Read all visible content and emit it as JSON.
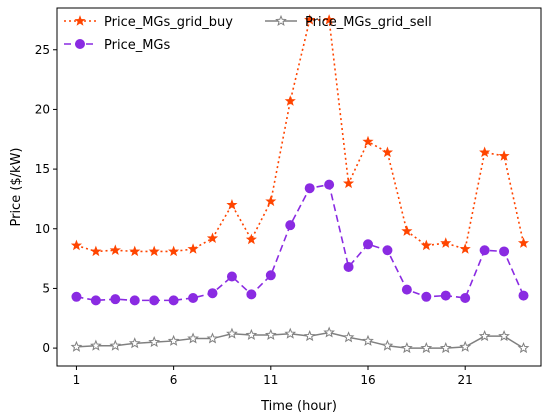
{
  "chart_data": {
    "type": "line",
    "title": "",
    "xlabel": "Time (hour)",
    "ylabel": "Price ($/kW)",
    "xlim": [
      0,
      24.9
    ],
    "ylim": [
      -1.5,
      28.5
    ],
    "xticks": [
      1,
      6,
      11,
      16,
      21
    ],
    "yticks": [
      0,
      5,
      10,
      15,
      20,
      25
    ],
    "grid": false,
    "legend": "top-left",
    "x": [
      1,
      2,
      3,
      4,
      5,
      6,
      7,
      8,
      9,
      10,
      11,
      12,
      13,
      14,
      15,
      16,
      17,
      18,
      19,
      20,
      21,
      22,
      23,
      24
    ],
    "series": [
      {
        "name": "Price_MGs_grid_buy",
        "color": "#ff4500",
        "style": "dotted",
        "marker": "star-filled",
        "values": [
          8.6,
          8.1,
          8.2,
          8.1,
          8.1,
          8.1,
          8.3,
          9.2,
          12.0,
          9.1,
          12.3,
          20.7,
          27.5,
          27.5,
          13.8,
          17.3,
          16.4,
          9.8,
          8.6,
          8.8,
          8.3,
          16.4,
          16.1,
          8.8
        ]
      },
      {
        "name": "Price_MGs",
        "color": "#8a2be2",
        "style": "dashed",
        "marker": "circle",
        "values": [
          4.3,
          4.0,
          4.1,
          4.0,
          4.0,
          4.0,
          4.2,
          4.6,
          6.0,
          4.5,
          6.1,
          10.3,
          13.4,
          13.7,
          6.8,
          8.7,
          8.2,
          4.9,
          4.3,
          4.4,
          4.2,
          8.2,
          8.1,
          4.4
        ]
      },
      {
        "name": "Price_MGs_grid_sell",
        "color": "#808080",
        "style": "solid",
        "marker": "star-hollow",
        "values": [
          0.1,
          0.2,
          0.2,
          0.4,
          0.5,
          0.6,
          0.8,
          0.8,
          1.2,
          1.1,
          1.1,
          1.2,
          1.0,
          1.3,
          0.9,
          0.6,
          0.2,
          0.0,
          0.0,
          0.0,
          0.1,
          1.0,
          1.0,
          0.0
        ]
      }
    ]
  }
}
